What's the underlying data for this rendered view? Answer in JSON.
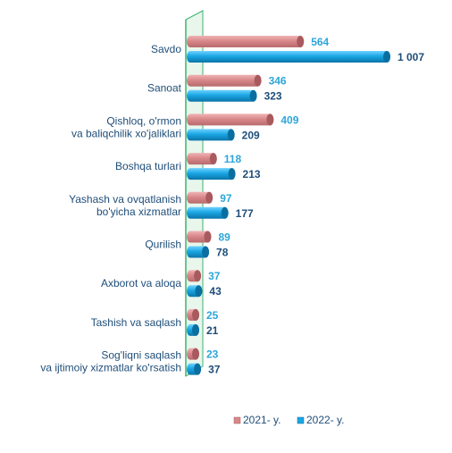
{
  "chart_data": {
    "type": "bar",
    "orientation": "horizontal",
    "categories": [
      [
        "Savdo"
      ],
      [
        "Sanoat"
      ],
      [
        "Qishloq, o'rmon",
        "va baliqchilik xo'jaliklari"
      ],
      [
        "Boshqa turlari"
      ],
      [
        "Yashash va ovqatlanish",
        "bo'yicha xizmatlar"
      ],
      [
        "Qurilish"
      ],
      [
        "Axborot va aloqa"
      ],
      [
        "Tashish va saqlash"
      ],
      [
        "Sog'liqni saqlash",
        "va ijtimoiy xizmatlar ko'rsatish"
      ]
    ],
    "series": [
      {
        "name": "2021- y.",
        "values": [
          564,
          346,
          409,
          118,
          97,
          89,
          37,
          25,
          23
        ],
        "labels": [
          "564",
          "346",
          "409",
          "118",
          "97",
          "89",
          "37",
          "25",
          "23"
        ]
      },
      {
        "name": "2022- y.",
        "values": [
          1007,
          323,
          209,
          213,
          177,
          78,
          43,
          21,
          37
        ],
        "labels": [
          "1 007",
          "323",
          "209",
          "213",
          "177",
          "78",
          "43",
          "21",
          "37"
        ]
      }
    ],
    "xlim": [
      0,
      1007
    ],
    "grid": false,
    "legend_position": "bottom"
  },
  "colors": {
    "series_2021": "#d9888a",
    "series_2021_end": "#a85a5e",
    "series_2022": "#1aa6e4",
    "series_2022_end": "#0a6fa0",
    "axis_wall": "#3cb371",
    "label_2021": "#2ea6d9",
    "label_2022": "#1f4e79"
  }
}
